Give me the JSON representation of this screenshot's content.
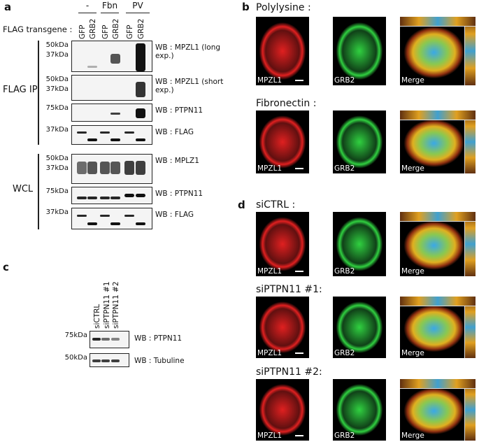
{
  "panel_a": {
    "label": "a",
    "transgene_label": "FLAG transgene :",
    "conditions": [
      "-",
      "Fbn",
      "PV"
    ],
    "lanes": [
      "GFP",
      "GRB2",
      "GFP",
      "GRB2",
      "GFP",
      "GRB2"
    ],
    "groups": [
      {
        "name": "FLAG IP",
        "blots": [
          {
            "markers": [
              "50kDa",
              "37kDa"
            ],
            "wb": "WB : MPZL1 (long exp.)"
          },
          {
            "markers": [
              "50kDa",
              "37kDa"
            ],
            "wb": "WB : MPZL1 (short exp.)"
          },
          {
            "markers": [
              "75kDa"
            ],
            "wb": "WB : PTPN11"
          },
          {
            "markers": [
              "37kDa"
            ],
            "wb": "WB : FLAG"
          }
        ]
      },
      {
        "name": "WCL",
        "blots": [
          {
            "markers": [
              "50kDa",
              "37kDa"
            ],
            "wb": "WB : MPLZ1"
          },
          {
            "markers": [
              "75kDa"
            ],
            "wb": "WB : PTPN11"
          },
          {
            "markers": [
              "37kDa"
            ],
            "wb": "WB : FLAG"
          }
        ]
      }
    ]
  },
  "panel_b": {
    "label": "b",
    "rows": [
      {
        "title": "Polylysine :",
        "channels": [
          "MPZL1",
          "GRB2",
          "Merge"
        ]
      },
      {
        "title": "Fibronectin :",
        "channels": [
          "MPZL1",
          "GRB2",
          "Merge"
        ]
      }
    ]
  },
  "panel_c": {
    "label": "c",
    "lanes": [
      "siCTRL",
      "siPTPN11 #1",
      "siPTPN11 #2"
    ],
    "blots": [
      {
        "markers": [
          "75kDa"
        ],
        "wb": "WB : PTPN11"
      },
      {
        "markers": [
          "50kDa"
        ],
        "wb": "WB : Tubuline"
      }
    ]
  },
  "panel_d": {
    "label": "d",
    "rows": [
      {
        "title": "siCTRL :",
        "channels": [
          "MPZL1",
          "GRB2",
          "Merge"
        ]
      },
      {
        "title": "siPTPN11 #1:",
        "channels": [
          "MPZL1",
          "GRB2",
          "Merge"
        ]
      },
      {
        "title": "siPTPN11 #2:",
        "channels": [
          "MPZL1",
          "GRB2",
          "Merge"
        ]
      }
    ]
  }
}
